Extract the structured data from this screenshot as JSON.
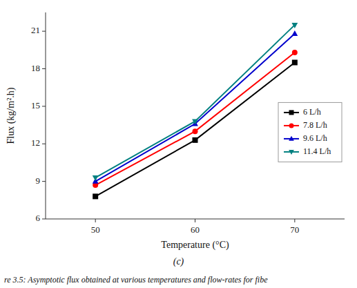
{
  "chart_data": {
    "type": "line",
    "x": [
      50,
      60,
      70
    ],
    "series": [
      {
        "name": "6 L/h",
        "values": [
          7.8,
          12.3,
          18.5
        ],
        "color": "#000000",
        "marker": "square"
      },
      {
        "name": "7.8 L/h",
        "values": [
          8.7,
          13.0,
          19.3
        ],
        "color": "#ff0000",
        "marker": "circle"
      },
      {
        "name": "9.6 L/h",
        "values": [
          9.0,
          13.6,
          20.8
        ],
        "color": "#0000cc",
        "marker": "triangle-up"
      },
      {
        "name": "11.4 L/h",
        "values": [
          9.3,
          13.8,
          21.5
        ],
        "color": "#008080",
        "marker": "triangle-down"
      }
    ],
    "x_label": "Temperature (°C)",
    "y_label": "Flux (kg/m².h)",
    "subtitle": "(c)",
    "caption": "re 3.5: Asymptotic flux obtained at various temperatures and flow-rates for fibe",
    "xlim": [
      45,
      75
    ],
    "ylim": [
      6,
      22.5
    ],
    "xticks": [
      50,
      60,
      70
    ],
    "yticks": [
      6,
      9,
      12,
      15,
      18,
      21
    ],
    "grid": false,
    "legend": "right"
  }
}
